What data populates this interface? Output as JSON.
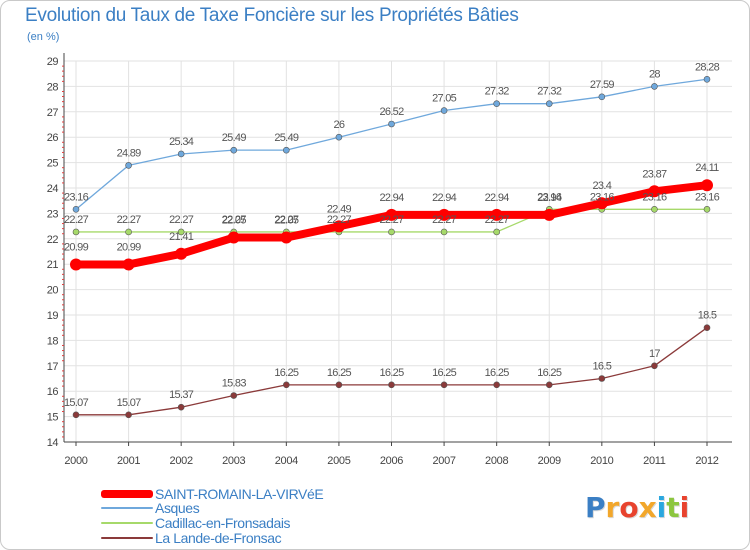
{
  "page": {
    "title": "Evolution du Taux de Taxe Foncière sur les Propriétés Bâties",
    "subtitle": "(en %)",
    "logo_text": "Proxiti",
    "logo_colors": [
      "#3b7fc4",
      "#f2a72b",
      "#e8432e",
      "#f2a72b",
      "#2aa7df",
      "#8cc63f",
      "#e8432e"
    ]
  },
  "chart_data": {
    "type": "line",
    "title": "Evolution du Taux de Taxe Foncière sur les Propriétés Bâties",
    "ylabel": "(en %)",
    "xlabel": "",
    "ylim": [
      14,
      29
    ],
    "yticks": [
      14,
      15,
      16,
      17,
      18,
      19,
      20,
      21,
      22,
      23,
      24,
      25,
      26,
      27,
      28,
      29
    ],
    "categories": [
      "2000",
      "2001",
      "2002",
      "2003",
      "2004",
      "2005",
      "2006",
      "2007",
      "2008",
      "2009",
      "2010",
      "2011",
      "2012"
    ],
    "series": [
      {
        "name": "SAINT-ROMAIN-LA-VIRVéE",
        "color": "#ff0000",
        "values": [
          20.99,
          20.99,
          21.41,
          22.05,
          22.05,
          22.49,
          22.94,
          22.94,
          22.94,
          22.94,
          23.4,
          23.87,
          24.11
        ],
        "labels": [
          "20.99",
          "20.99",
          "21.41",
          "22.05",
          "22.05",
          "22.49",
          "22.94",
          "22.94",
          "22.94",
          "22.94",
          "23.4",
          "23.87",
          "24.11"
        ]
      },
      {
        "name": "Asques",
        "color": "#6fa8dc",
        "values": [
          23.16,
          24.89,
          25.34,
          25.49,
          25.49,
          26,
          26.52,
          27.05,
          27.32,
          27.32,
          27.59,
          28,
          28.28
        ],
        "labels": [
          "23.16",
          "24.89",
          "25.34",
          "25.49",
          "25.49",
          "26",
          "26.52",
          "27.05",
          "27.32",
          "27.32",
          "27.59",
          "28",
          "28.28"
        ]
      },
      {
        "name": "Cadillac-en-Fronsadais",
        "color": "#a6d96a",
        "values": [
          22.27,
          22.27,
          22.27,
          22.27,
          22.27,
          22.27,
          22.27,
          22.27,
          22.27,
          23.16,
          23.16,
          23.16,
          23.16
        ],
        "labels": [
          "22.27",
          "22.27",
          "22.27",
          "22.27",
          "22.27",
          "22.27",
          "22.27",
          "22.27",
          "22.27",
          "23.16",
          "23.16",
          "23.16",
          "23.16"
        ]
      },
      {
        "name": "La Lande-de-Fronsac",
        "color": "#8b3a3a",
        "values": [
          15.07,
          15.07,
          15.37,
          15.83,
          16.25,
          16.25,
          16.25,
          16.25,
          16.25,
          16.25,
          16.5,
          17,
          18.5
        ],
        "labels": [
          "15.07",
          "15.07",
          "15.37",
          "15.83",
          "16.25",
          "16.25",
          "16.25",
          "16.25",
          "16.25",
          "16.25",
          "16.5",
          "17",
          "18.5"
        ]
      }
    ]
  }
}
